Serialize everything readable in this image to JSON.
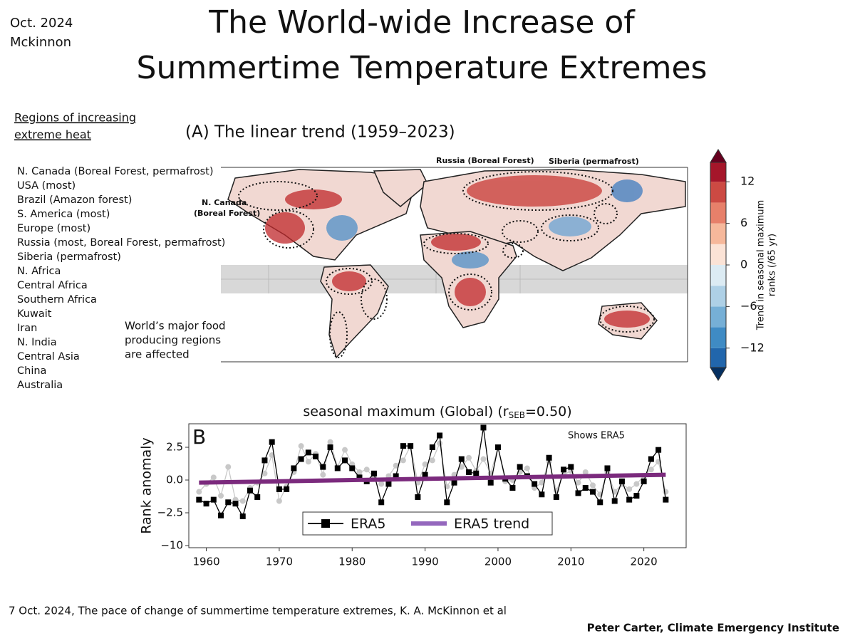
{
  "header": {
    "date": "Oct. 2024",
    "author": "Mckinnon",
    "title_lines": [
      "The World-wide Increase of",
      "Summertime Temperature Extremes"
    ]
  },
  "regions": {
    "heading_lines": [
      "Regions of increasing",
      "extreme heat"
    ],
    "items": [
      "N. Canada (Boreal Forest, permafrost)",
      "USA (most)",
      "Brazil (Amazon forest)",
      "S. America (most)",
      "Europe (most)",
      "Russia (most, Boreal Forest, permafrost)",
      "Siberia (permafrost)",
      "N. Africa",
      "Central Africa",
      "Southern Africa",
      "Kuwait",
      "Iran",
      "N. India",
      "Central Asia",
      "China",
      "Australia"
    ]
  },
  "note_lines": [
    "World’s major food",
    "producing regions",
    "are affected"
  ],
  "map": {
    "title": "(A) The linear trend (1959–2023)",
    "labels": [
      "Russia (Boreal Forest)",
      "Siberia (permafrost)",
      "N. Canada",
      "(Boreal Forest)"
    ],
    "colorbar": {
      "label_lines": [
        "Trend in seasonal maximum",
        "ranks (/65 yr)"
      ],
      "lim": [
        -14.8,
        14.8
      ],
      "bounds": [
        -15,
        -12,
        -9,
        -6,
        -3,
        0,
        3,
        6,
        9,
        12,
        15
      ],
      "colors": [
        "#2166ac",
        "#3f8bc4",
        "#76afd6",
        "#aed0e6",
        "#dcebf3",
        "#fbe3d6",
        "#f6b89b",
        "#e7806a",
        "#cc4a43",
        "#a5162a"
      ],
      "ticks": [
        12,
        6,
        0,
        {
          "value": -6,
          "label": "−6"
        },
        {
          "value": -12,
          "label": "−12"
        }
      ]
    }
  },
  "chart_data": {
    "type": "line",
    "title_parts": [
      "seasonal maximum (Global) (r",
      "SEB",
      "=0.50)"
    ],
    "panel_label": "B",
    "annotation": "Shows ERA5",
    "ylabel": "Rank anomaly",
    "x": [
      1959,
      1960,
      1961,
      1962,
      1963,
      1964,
      1965,
      1966,
      1967,
      1968,
      1969,
      1970,
      1971,
      1972,
      1973,
      1974,
      1975,
      1976,
      1977,
      1978,
      1979,
      1980,
      1981,
      1982,
      1983,
      1984,
      1985,
      1986,
      1987,
      1988,
      1989,
      1990,
      1991,
      1992,
      1993,
      1994,
      1995,
      1996,
      1997,
      1998,
      1999,
      2000,
      2001,
      2002,
      2003,
      2004,
      2005,
      2006,
      2007,
      2008,
      2009,
      2010,
      2011,
      2012,
      2013,
      2014,
      2015,
      2016,
      2017,
      2018,
      2019,
      2020,
      2021,
      2022,
      2023
    ],
    "series": [
      {
        "color": "#c8c8c8",
        "values": [
          -0.9,
          -0.3,
          0.2,
          -1.2,
          1.0,
          -1.5,
          -1.6,
          -0.6,
          -0.2,
          0.5,
          1.9,
          -1.6,
          -0.5,
          0.6,
          2.6,
          1.4,
          2.0,
          0.4,
          2.9,
          1.0,
          2.3,
          1.2,
          0.6,
          0.8,
          0.2,
          -0.3,
          0.3,
          1.1,
          1.5,
          2.6,
          -0.2,
          1.2,
          1.5,
          2.8,
          -0.5,
          0.4,
          1.0,
          1.7,
          0.7,
          1.6,
          0.5,
          2.5,
          -0.1,
          0.0,
          0.6,
          0.9,
          -0.6,
          -0.2,
          1.4,
          -0.8,
          0.4,
          0.7,
          -0.2,
          0.6,
          -0.4,
          -1.1,
          0.6,
          -0.9,
          -0.3,
          -0.7,
          -0.3,
          0.3,
          0.8,
          1.4,
          -0.9
        ]
      },
      {
        "name": "ERA5",
        "color": "#000000",
        "marker": "square",
        "values": [
          -1.5,
          -1.8,
          -1.5,
          -3.1,
          -1.7,
          -1.8,
          -3.3,
          -0.8,
          -1.3,
          1.5,
          2.9,
          -0.7,
          -0.7,
          0.9,
          1.6,
          2.1,
          1.8,
          1.0,
          2.5,
          0.9,
          1.5,
          0.9,
          0.2,
          -0.1,
          0.5,
          -1.7,
          -0.3,
          0.3,
          2.6,
          2.6,
          -1.3,
          0.4,
          2.5,
          3.4,
          -1.7,
          -0.2,
          1.6,
          0.6,
          0.5,
          4.0,
          -0.2,
          2.5,
          0.1,
          -0.6,
          1.0,
          0.3,
          -0.3,
          -1.1,
          1.7,
          -1.3,
          0.8,
          1.0,
          -1.0,
          -0.6,
          -0.9,
          -1.7,
          0.9,
          -1.6,
          -0.1,
          -1.5,
          -1.2,
          -0.1,
          1.6,
          2.3,
          -1.5
        ]
      },
      {
        "name": "ERA5 trend",
        "color": "#7b2a7d",
        "legend_color": "#9467bd",
        "x": [
          1959,
          2023
        ],
        "values": [
          -0.2,
          0.4
        ]
      }
    ],
    "xlim": [
      1957.6,
      2025.8
    ],
    "xticks": [
      1960,
      1970,
      1980,
      1990,
      2000,
      2010,
      2020
    ],
    "ylim": [
      -10.3,
      4.3
    ],
    "yticks": [
      {
        "value": -10,
        "label": "−10"
      },
      {
        "value": -2.5,
        "label": "−2.5"
      },
      {
        "value": 0,
        "label": "0.0"
      },
      2.5
    ]
  },
  "footer": {
    "citation": "7 Oct. 2024, The pace of change of summertime temperature extremes, K. A. McKinnon et al",
    "credit": "Peter Carter, Climate Emergency Institute"
  }
}
